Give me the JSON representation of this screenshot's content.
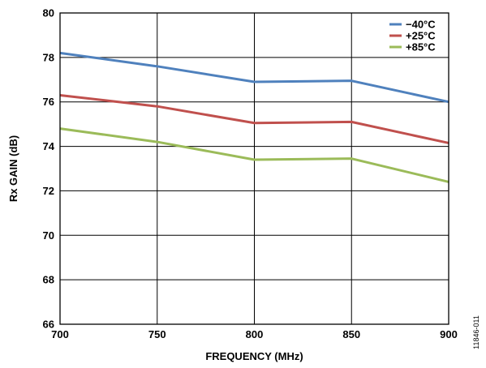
{
  "chart_data": {
    "type": "line",
    "xlabel": "FREQUENCY (MHz)",
    "ylabel": "Rx GAIN (dB)",
    "x": [
      700,
      750,
      800,
      850,
      900
    ],
    "xlim": [
      700,
      900
    ],
    "ylim": [
      66,
      80
    ],
    "x_ticks": [
      700,
      750,
      800,
      850,
      900
    ],
    "y_ticks": [
      66,
      68,
      70,
      72,
      74,
      76,
      78,
      80
    ],
    "grid": true,
    "legend_position": "top-right",
    "series": [
      {
        "name": "−40°C",
        "color": "#4f81bd",
        "values": [
          78.2,
          77.6,
          76.9,
          76.95,
          76.0
        ]
      },
      {
        "name": "+25°C",
        "color": "#c0504d",
        "values": [
          76.3,
          75.8,
          75.05,
          75.1,
          74.15
        ]
      },
      {
        "name": "+85°C",
        "color": "#9bbb59",
        "values": [
          74.8,
          74.2,
          73.4,
          73.45,
          72.4
        ]
      }
    ]
  },
  "figure_id": "11846-011"
}
